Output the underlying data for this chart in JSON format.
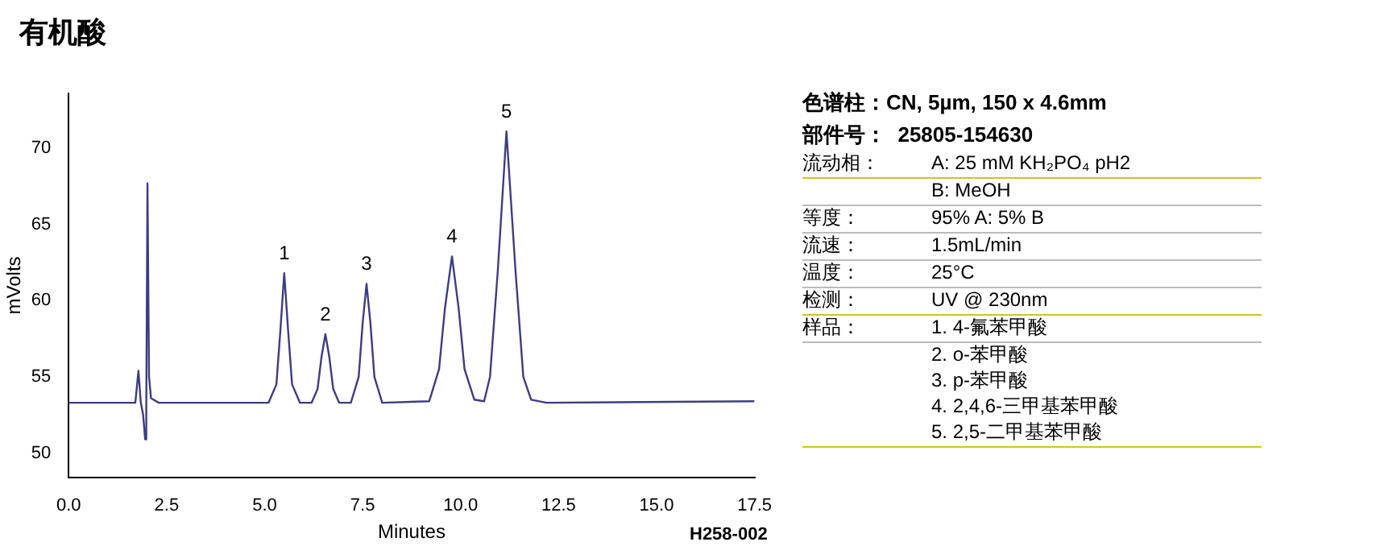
{
  "chart_data": {
    "type": "line",
    "title": "有机酸",
    "xlabel": "Minutes",
    "ylabel": "mVolts",
    "x": [
      0,
      1.7,
      1.78,
      1.84,
      1.9,
      1.95,
      1.98,
      2.01,
      2.05,
      2.1,
      2.3,
      5.1,
      5.3,
      5.4,
      5.5,
      5.6,
      5.7,
      5.9,
      6.2,
      6.35,
      6.45,
      6.55,
      6.65,
      6.75,
      6.9,
      7.2,
      7.4,
      7.5,
      7.6,
      7.7,
      7.8,
      8.0,
      9.2,
      9.45,
      9.6,
      9.78,
      9.95,
      10.1,
      10.35,
      10.6,
      10.75,
      10.95,
      11.17,
      11.4,
      11.6,
      11.8,
      12.2,
      17.5
    ],
    "series": [
      {
        "color": "#3d3d80",
        "values": [
          53.3,
          53.3,
          55.4,
          53.3,
          52.5,
          50.9,
          53,
          67.7,
          55,
          53.6,
          53.3,
          53.3,
          54.5,
          58,
          61.8,
          58,
          54.5,
          53.3,
          53.3,
          54.2,
          56.3,
          57.8,
          56.3,
          54.2,
          53.3,
          53.3,
          55,
          58.5,
          61.1,
          58.5,
          55,
          53.3,
          53.4,
          55.5,
          59.5,
          62.9,
          59.5,
          55.5,
          53.5,
          53.4,
          55,
          62,
          71.1,
          62,
          55,
          53.5,
          53.3,
          53.4
        ]
      }
    ],
    "xlim": [
      0,
      17.5
    ],
    "xticks": [
      {
        "value": 0,
        "label": "0.0"
      },
      2.5,
      {
        "value": 5,
        "label": "5.0"
      },
      7.5,
      {
        "value": 10,
        "label": "10.0"
      },
      12.5,
      {
        "value": 15,
        "label": "15.0"
      },
      17.5
    ],
    "ylim": [
      48.4,
      73.6
    ],
    "yticks": [
      50,
      55,
      60,
      65,
      70
    ],
    "grid": false,
    "legend": false,
    "marker": "none",
    "line_style": "solid",
    "annotations": [
      {
        "text": "1",
        "x": 5.5,
        "y": 61.8
      },
      {
        "text": "2",
        "x": 6.55,
        "y": 57.8
      },
      {
        "text": "3",
        "x": 7.6,
        "y": 61.1
      },
      {
        "text": "4",
        "x": 9.78,
        "y": 62.9
      },
      {
        "text": "5",
        "x": 11.17,
        "y": 71.1
      },
      "H258-002",
      "色谱柱：CN, 5µm, 150 x 4.6mm",
      "部件号：  25805-154630",
      "流动相：",
      "A: 25 mM KH₂PO₄ pH2",
      "B: MeOH",
      "等度：",
      "95% A: 5% B",
      "流速：",
      "1.5mL/min",
      "温度：",
      "25°C",
      "检测：",
      "UV @ 230nm",
      "样品：",
      "1. 4-氟苯甲酸",
      "2. o-苯甲酸",
      "3. p-苯甲酸",
      "4. 2,4,6-三甲基苯甲酸",
      "5. 2,5-二甲基苯甲酸"
    ]
  }
}
